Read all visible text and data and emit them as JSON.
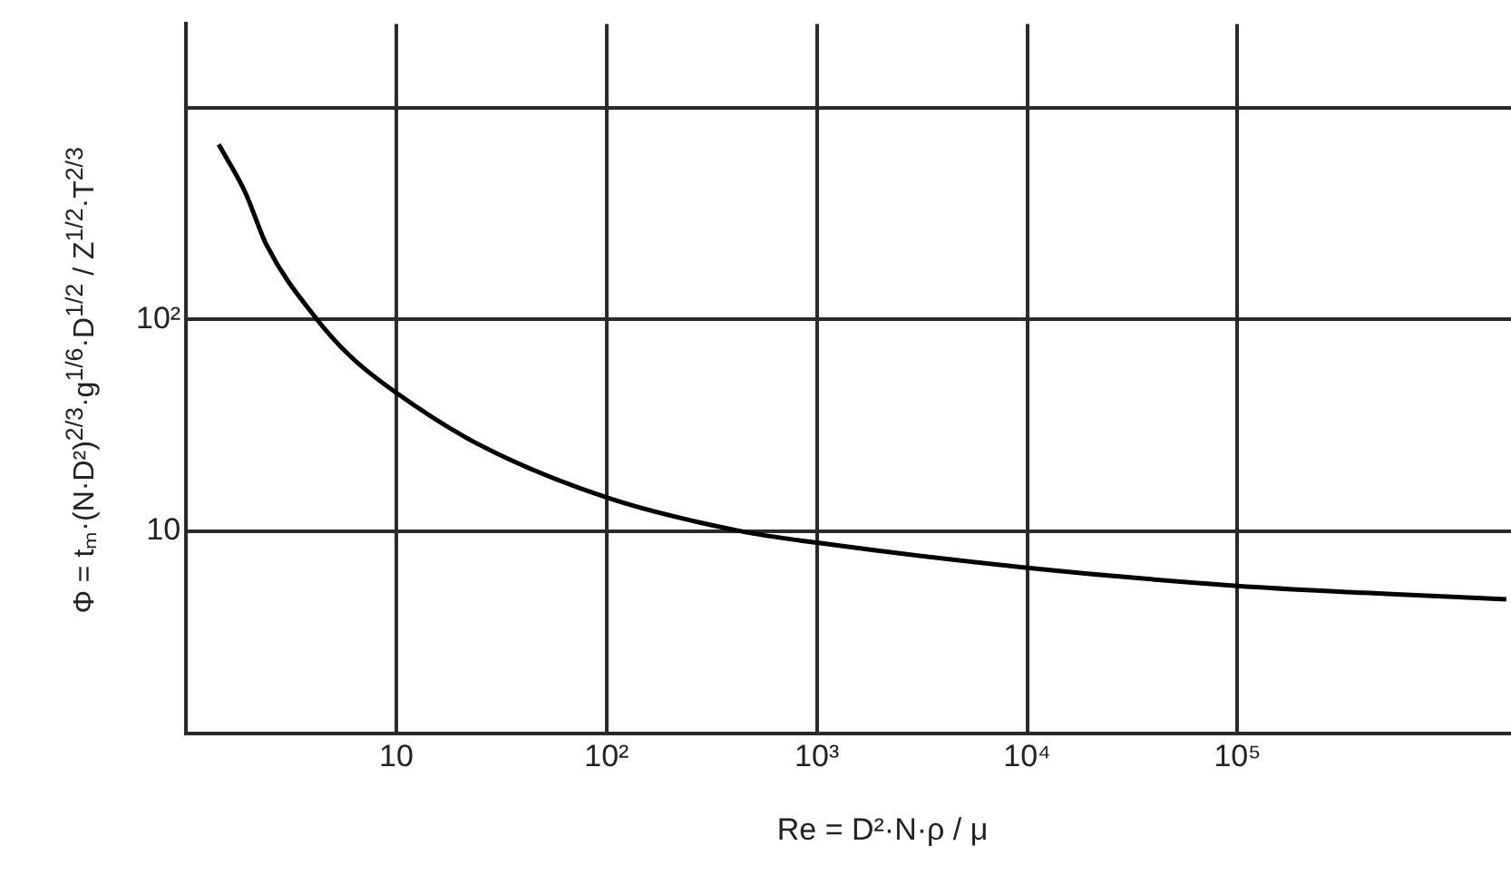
{
  "chart_data": {
    "type": "line",
    "xlabel": "Re = D²·N·ρ / μ",
    "ylabel": "Φ = tₘ·(N·D²)$^{2/3}$·g$^{1/6}$·D$^{1/2}$ / Z$^{1/2}$·T$^{2/3}$",
    "log": "xy",
    "grid": true,
    "xlim": [
      1,
      2000000
    ],
    "ylim": [
      1.1,
      2500
    ],
    "xticks": [
      10,
      {
        "value": 100,
        "label": "10²"
      },
      {
        "value": 1000,
        "label": "10³"
      },
      {
        "value": 10000,
        "label": "10⁴"
      },
      {
        "value": 100000,
        "label": "10⁵"
      }
    ],
    "yticks": [
      10,
      {
        "value": 100,
        "label": "10²"
      },
      {
        "value": 1000,
        "label": null
      }
    ],
    "series": [
      {
        "color": "#000000",
        "x": [
          1.43,
          1.91,
          2.42,
          4.2,
          6.1,
          10,
          24.4,
          100,
          430,
          1000,
          10000,
          100000,
          400000,
          1900000
        ],
        "values": [
          673,
          400,
          224,
          100,
          66.5,
          45,
          25.8,
          14.4,
          10,
          8.8,
          6.7,
          5.5,
          5.1,
          4.75
        ]
      }
    ]
  }
}
